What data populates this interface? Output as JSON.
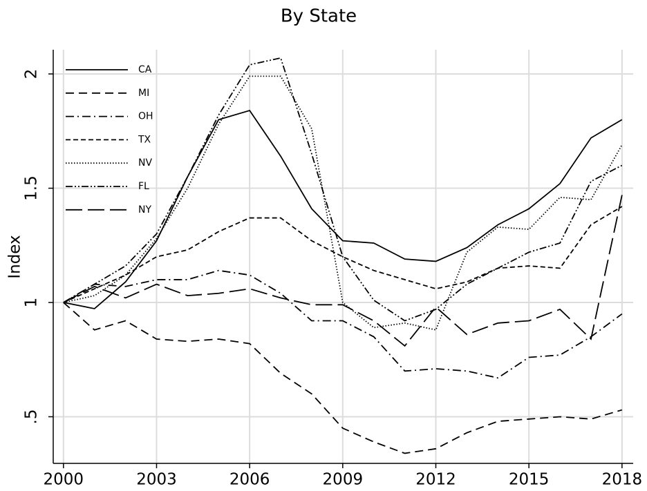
{
  "chart_data": {
    "type": "line",
    "title": "By State",
    "y_label": "Index",
    "x": [
      2000,
      2001,
      2002,
      2003,
      2004,
      2005,
      2006,
      2007,
      2008,
      2009,
      2010,
      2011,
      2012,
      2013,
      2014,
      2015,
      2016,
      2017,
      2018
    ],
    "xlim": [
      1999.67,
      2018.36
    ],
    "xticks": [
      2000,
      2003,
      2006,
      2009,
      2012,
      2015,
      2018
    ],
    "ylim": [
      0.296,
      2.106
    ],
    "yticks": [
      {
        "value": 0.5,
        "label": ".5"
      },
      1,
      1.5,
      2
    ],
    "grid": true,
    "legend": "top-left",
    "series": [
      {
        "name": "CA",
        "color": "#000000",
        "dash": "none",
        "values": [
          1,
          0.973,
          1.09,
          1.27,
          1.55,
          1.8,
          1.84,
          1.64,
          1.41,
          1.27,
          1.26,
          1.19,
          1.18,
          1.24,
          1.34,
          1.41,
          1.52,
          1.72,
          1.8
        ]
      },
      {
        "name": "MI",
        "color": "#000000",
        "dash": "12,7",
        "values": [
          1,
          0.88,
          0.92,
          0.84,
          0.83,
          0.84,
          0.82,
          0.69,
          0.6,
          0.45,
          0.39,
          0.34,
          0.36,
          0.43,
          0.48,
          0.49,
          0.5,
          0.49,
          0.53
        ]
      },
      {
        "name": "OH",
        "color": "#000000",
        "dash": "12,5,2,5",
        "values": [
          1,
          1.08,
          1.07,
          1.1,
          1.1,
          1.14,
          1.12,
          1.04,
          0.92,
          0.92,
          0.85,
          0.7,
          0.71,
          0.7,
          0.67,
          0.76,
          0.77,
          0.85,
          0.95
        ]
      },
      {
        "name": "TX",
        "color": "#000000",
        "dash": "7,4",
        "values": [
          1,
          1.06,
          1.12,
          1.2,
          1.23,
          1.31,
          1.37,
          1.37,
          1.27,
          1.2,
          1.14,
          1.1,
          1.06,
          1.09,
          1.15,
          1.16,
          1.15,
          1.34,
          1.42
        ]
      },
      {
        "name": "NV",
        "color": "#000000",
        "dash": "1.5,2.5",
        "values": [
          1,
          1.03,
          1.12,
          1.28,
          1.5,
          1.78,
          1.99,
          1.99,
          1.76,
          1.0,
          0.89,
          0.91,
          0.88,
          1.22,
          1.33,
          1.32,
          1.46,
          1.45,
          1.69
        ]
      },
      {
        "name": "FL",
        "color": "#000000",
        "dash": "10,3,2,3,2,3",
        "values": [
          1,
          1.08,
          1.16,
          1.3,
          1.55,
          1.82,
          2.04,
          2.07,
          1.65,
          1.2,
          1.01,
          0.92,
          0.97,
          1.08,
          1.15,
          1.22,
          1.26,
          1.53,
          1.6
        ]
      },
      {
        "name": "NY",
        "color": "#000000",
        "dash": "24,8",
        "values": [
          1,
          1.07,
          1.02,
          1.08,
          1.03,
          1.04,
          1.06,
          1.02,
          0.99,
          0.99,
          0.92,
          0.81,
          0.98,
          0.86,
          0.91,
          0.92,
          0.97,
          0.84,
          1.47
        ]
      }
    ]
  }
}
